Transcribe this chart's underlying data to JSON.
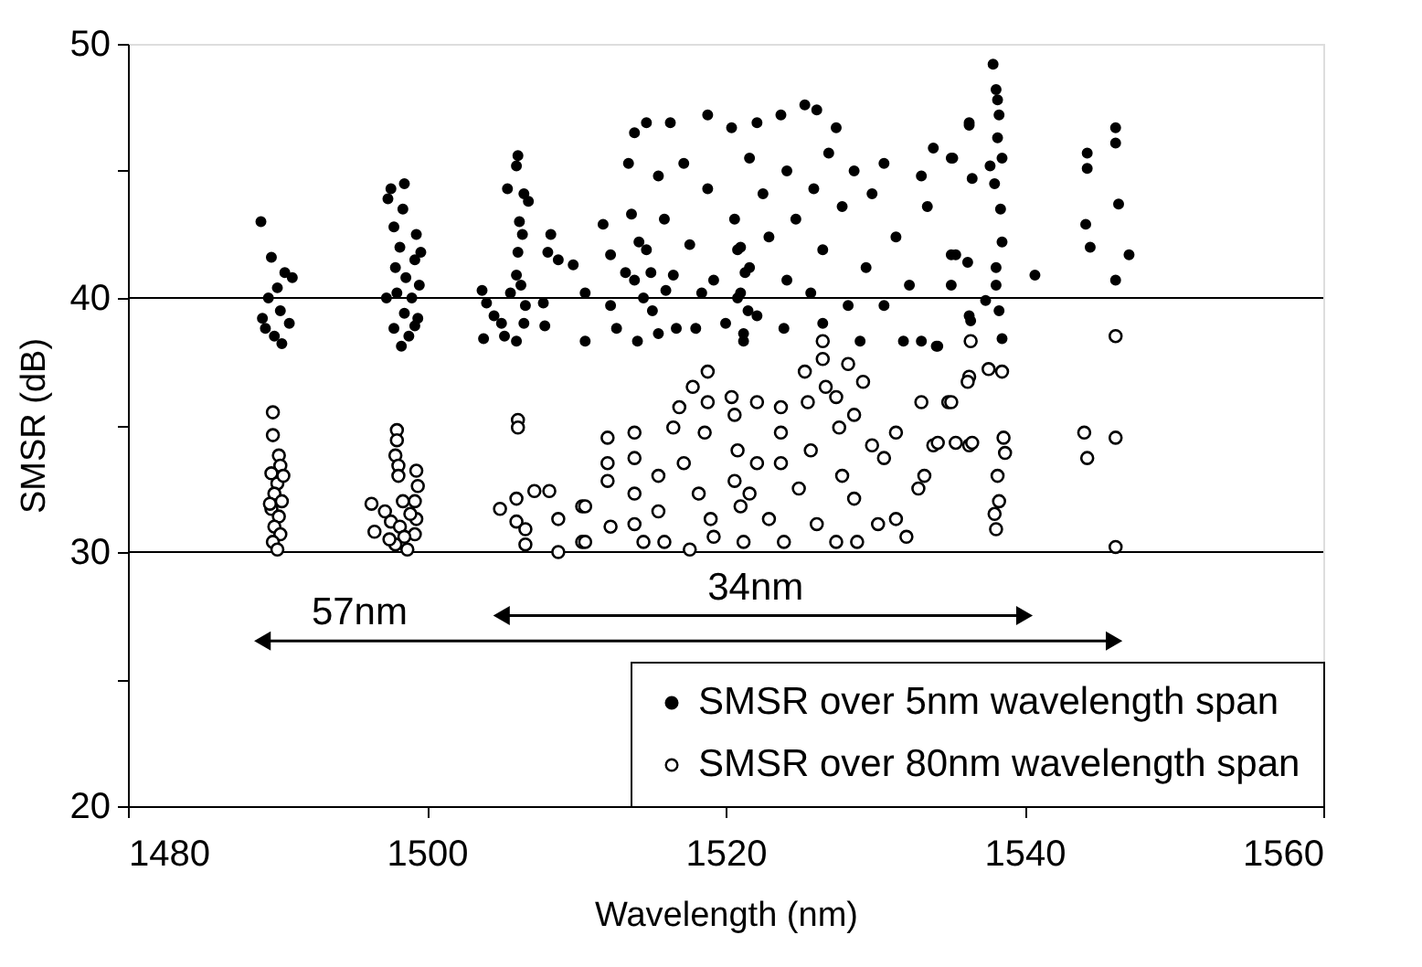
{
  "chart_data": {
    "type": "scatter",
    "xlabel": "Wavelength (nm)",
    "ylabel": "SMSR (dB)",
    "xlim": [
      1480,
      1560
    ],
    "xticks": [
      1480,
      1500,
      1520,
      1540,
      1560
    ],
    "ylim": [
      20,
      50
    ],
    "yticks": [
      20,
      {
        "value": 25,
        "label": null
      },
      30,
      {
        "value": 35,
        "label": null
      },
      40,
      {
        "value": 45,
        "label": null
      },
      50
    ],
    "legend": "bottom right",
    "ref_lines": [
      {
        "axis": "y",
        "value": 30,
        "color": "#000000"
      },
      {
        "axis": "y",
        "value": 40,
        "color": "#000000"
      }
    ],
    "annotations": [
      {
        "text": "57nm",
        "x": 1495.5,
        "y": 26.5
      },
      {
        "text": "34nm",
        "x": 1522,
        "y": 27.5
      }
    ],
    "series": [
      {
        "name": "SMSR over 5nm wavelength span",
        "color": "#000000",
        "marker": "circle",
        "x": [
          1488.9,
          1489.6,
          1490.0,
          1490.5,
          1489.4,
          1490.2,
          1489.0,
          1490.8,
          1489.8,
          1490.3,
          1491.0,
          1489.2,
          1497.6,
          1497.4,
          1498.5,
          1498.4,
          1497.8,
          1499.3,
          1498.2,
          1497.9,
          1499.2,
          1498.6,
          1497.3,
          1498.0,
          1499.0,
          1498.5,
          1499.4,
          1497.8,
          1498.8,
          1499.2,
          1498.3,
          1499.5,
          1499.6,
          1506.1,
          1506.0,
          1505.4,
          1506.5,
          1506.8,
          1506.2,
          1506.4,
          1506.1,
          1506.0,
          1505.6,
          1506.3,
          1503.7,
          1504.0,
          1504.5,
          1503.8,
          1505.2,
          1506.0,
          1506.5,
          1507.8,
          1508.1,
          1508.3,
          1508.8,
          1507.9,
          1505.0,
          1506.6,
          1509.8,
          1510.6,
          1510.6,
          1511.8,
          1512.3,
          1512.3,
          1512.7,
          1513.5,
          1513.9,
          1513.7,
          1513.9,
          1514.1,
          1514.7,
          1514.7,
          1515.1,
          1515.5,
          1515.9,
          1516.3,
          1516.5,
          1516.7,
          1517.2,
          1517.6,
          1518.0,
          1518.4,
          1518.8,
          1518.8,
          1519.2,
          1520.0,
          1520.4,
          1520.6,
          1520.8,
          1521.0,
          1521.2,
          1521.6,
          1521.6,
          1522.1,
          1522.1,
          1522.5,
          1522.9,
          1523.7,
          1523.9,
          1524.1,
          1524.1,
          1524.7,
          1525.3,
          1525.7,
          1525.9,
          1526.1,
          1526.5,
          1526.5,
          1526.9,
          1527.4,
          1527.8,
          1528.2,
          1528.6,
          1529.0,
          1529.4,
          1529.8,
          1530.6,
          1530.6,
          1531.4,
          1531.9,
          1532.3,
          1533.1,
          1533.1,
          1533.5,
          1533.9,
          1534.1,
          1535.1,
          1535.1,
          1536.3,
          1536.3,
          1537.9,
          1521.0,
          1521.3,
          1520.8,
          1521.5,
          1521.2,
          1514.5,
          1515.0,
          1515.5,
          1516.0,
          1514.2,
          1513.3,
          1538.1,
          1538.2,
          1538.3,
          1538.2,
          1536.3,
          1535.2,
          1536.5,
          1537.7,
          1538.5,
          1538.0,
          1538.4,
          1538.5,
          1535.4,
          1536.2,
          1538.1,
          1538.1,
          1537.4,
          1538.3,
          1536.4,
          1538.5,
          1540.7,
          1544.2,
          1544.2,
          1544.1,
          1544.4,
          1546.1,
          1546.1,
          1546.3,
          1547.0,
          1546.1,
          1535.1,
          1534.2
        ],
        "values": [
          43.0,
          41.6,
          40.4,
          41.0,
          40.0,
          39.5,
          39.2,
          39.0,
          38.5,
          38.2,
          40.8,
          38.8,
          44.3,
          43.9,
          44.5,
          43.5,
          42.8,
          42.5,
          42.0,
          41.2,
          41.5,
          40.8,
          40.0,
          40.2,
          40.0,
          39.4,
          39.2,
          38.8,
          38.5,
          38.9,
          38.1,
          40.5,
          41.8,
          45.6,
          45.2,
          44.3,
          44.1,
          43.8,
          43.0,
          42.5,
          41.8,
          40.9,
          40.2,
          40.5,
          40.3,
          39.8,
          39.3,
          38.4,
          38.5,
          38.3,
          39.0,
          39.8,
          41.8,
          42.5,
          41.5,
          38.9,
          39.0,
          39.7,
          41.3,
          40.2,
          38.3,
          42.9,
          41.7,
          39.7,
          38.8,
          45.3,
          46.5,
          43.3,
          40.7,
          38.3,
          46.9,
          41.9,
          39.5,
          44.8,
          43.1,
          46.9,
          40.9,
          38.8,
          45.3,
          42.1,
          38.8,
          40.2,
          47.2,
          44.3,
          40.7,
          39.0,
          46.7,
          43.1,
          41.9,
          40.2,
          38.3,
          45.5,
          41.2,
          46.9,
          39.3,
          44.1,
          42.4,
          47.2,
          38.8,
          45.0,
          40.7,
          43.1,
          47.6,
          40.2,
          44.3,
          47.4,
          41.9,
          39.0,
          45.7,
          46.7,
          43.6,
          39.7,
          45.0,
          38.3,
          41.2,
          44.1,
          45.3,
          39.7,
          42.4,
          38.3,
          40.5,
          44.8,
          38.3,
          43.6,
          45.9,
          38.1,
          45.5,
          41.7,
          46.9,
          39.3,
          49.2,
          42.0,
          41.0,
          40.0,
          39.5,
          38.6,
          40.0,
          41.0,
          38.6,
          40.3,
          42.2,
          41.0,
          48.2,
          47.8,
          47.2,
          46.3,
          46.8,
          45.5,
          44.7,
          45.2,
          45.5,
          44.5,
          43.5,
          42.2,
          41.7,
          41.4,
          41.2,
          40.5,
          39.9,
          39.5,
          39.1,
          38.4,
          40.9,
          45.7,
          45.1,
          42.9,
          42.0,
          46.7,
          46.1,
          43.7,
          41.7,
          40.7,
          40.5,
          38.1
        ]
      },
      {
        "name": "SMSR over 80nm wavelength span",
        "color": "#000000",
        "marker": "circle",
        "x": [
          1489.7,
          1489.7,
          1490.1,
          1490.2,
          1489.6,
          1490.0,
          1489.8,
          1490.3,
          1489.6,
          1490.1,
          1489.8,
          1490.2,
          1489.7,
          1490.0,
          1489.5,
          1490.4,
          1498.0,
          1498.0,
          1497.9,
          1498.1,
          1498.1,
          1499.3,
          1499.4,
          1499.2,
          1499.3,
          1499.2,
          1496.3,
          1496.5,
          1497.2,
          1497.6,
          1498.2,
          1498.5,
          1497.9,
          1498.7,
          1498.4,
          1497.5,
          1498.9,
          1506.1,
          1506.1,
          1504.9,
          1506.0,
          1507.2,
          1508.2,
          1506.0,
          1506.6,
          1506.6,
          1508.8,
          1508.8,
          1510.4,
          1510.4,
          1510.6,
          1510.6,
          1512.1,
          1512.1,
          1512.1,
          1512.3,
          1513.9,
          1513.9,
          1513.9,
          1513.9,
          1514.5,
          1515.5,
          1515.5,
          1515.9,
          1516.5,
          1516.9,
          1517.2,
          1517.6,
          1517.8,
          1518.8,
          1518.8,
          1518.6,
          1518.2,
          1519.0,
          1519.2,
          1520.4,
          1520.6,
          1520.8,
          1520.6,
          1521.0,
          1521.2,
          1522.1,
          1522.1,
          1521.6,
          1522.9,
          1523.7,
          1523.7,
          1523.7,
          1523.9,
          1524.9,
          1525.3,
          1525.5,
          1525.7,
          1526.1,
          1526.5,
          1526.5,
          1526.7,
          1527.4,
          1527.6,
          1527.8,
          1528.2,
          1528.6,
          1528.6,
          1528.8,
          1529.2,
          1527.4,
          1529.8,
          1530.6,
          1531.4,
          1531.4,
          1530.2,
          1532.1,
          1532.9,
          1533.1,
          1533.3,
          1533.9,
          1534.9,
          1536.3,
          1536.3,
          1537.6,
          1536.4,
          1538.5,
          1536.2,
          1535.1,
          1534.2,
          1535.4,
          1536.5,
          1538.6,
          1538.7,
          1538.2,
          1538.3,
          1538.0,
          1538.1,
          1544.0,
          1544.2,
          1546.1,
          1546.1,
          1546.1
        ],
        "values": [
          35.5,
          34.6,
          33.8,
          33.4,
          33.1,
          32.7,
          32.3,
          32.0,
          31.7,
          31.4,
          31.0,
          30.7,
          30.4,
          30.1,
          31.9,
          33.0,
          34.8,
          34.4,
          33.8,
          33.4,
          33.0,
          33.2,
          32.6,
          32.0,
          31.3,
          30.7,
          31.9,
          30.8,
          31.6,
          31.2,
          31.0,
          30.6,
          30.3,
          30.1,
          32.0,
          30.5,
          31.5,
          35.2,
          34.9,
          31.7,
          32.1,
          32.4,
          32.4,
          31.2,
          30.9,
          30.3,
          31.3,
          30.0,
          31.8,
          30.4,
          31.8,
          30.4,
          34.5,
          33.5,
          32.8,
          31.0,
          34.7,
          33.7,
          32.3,
          31.1,
          30.4,
          33.0,
          31.6,
          30.4,
          34.9,
          35.7,
          33.5,
          30.1,
          36.5,
          37.1,
          35.9,
          34.7,
          32.3,
          31.3,
          30.6,
          36.1,
          35.4,
          34.0,
          32.8,
          31.8,
          30.4,
          35.9,
          33.5,
          32.3,
          31.3,
          35.7,
          34.7,
          33.5,
          30.4,
          32.5,
          37.1,
          35.9,
          34.0,
          31.1,
          38.3,
          37.6,
          36.5,
          36.1,
          34.9,
          33.0,
          37.4,
          35.4,
          32.1,
          30.4,
          36.7,
          30.4,
          34.2,
          33.7,
          34.7,
          31.3,
          31.1,
          30.6,
          32.5,
          35.9,
          33.0,
          34.2,
          35.9,
          34.2,
          36.9,
          37.2,
          38.3,
          37.1,
          36.7,
          35.9,
          34.3,
          34.3,
          34.3,
          34.5,
          33.9,
          33.0,
          32.0,
          31.5,
          30.9,
          34.7,
          33.7,
          34.5,
          38.5,
          30.2
        ]
      },
      {
        "type": "line",
        "color": "#000000",
        "marker": "triangle",
        "x": [
          1489,
          1546
        ],
        "values": [
          26.5,
          26.5
        ]
      },
      {
        "type": "line",
        "color": "#000000",
        "marker": "triangle",
        "x": [
          1505,
          1540
        ],
        "values": [
          27.5,
          27.5
        ]
      }
    ]
  }
}
